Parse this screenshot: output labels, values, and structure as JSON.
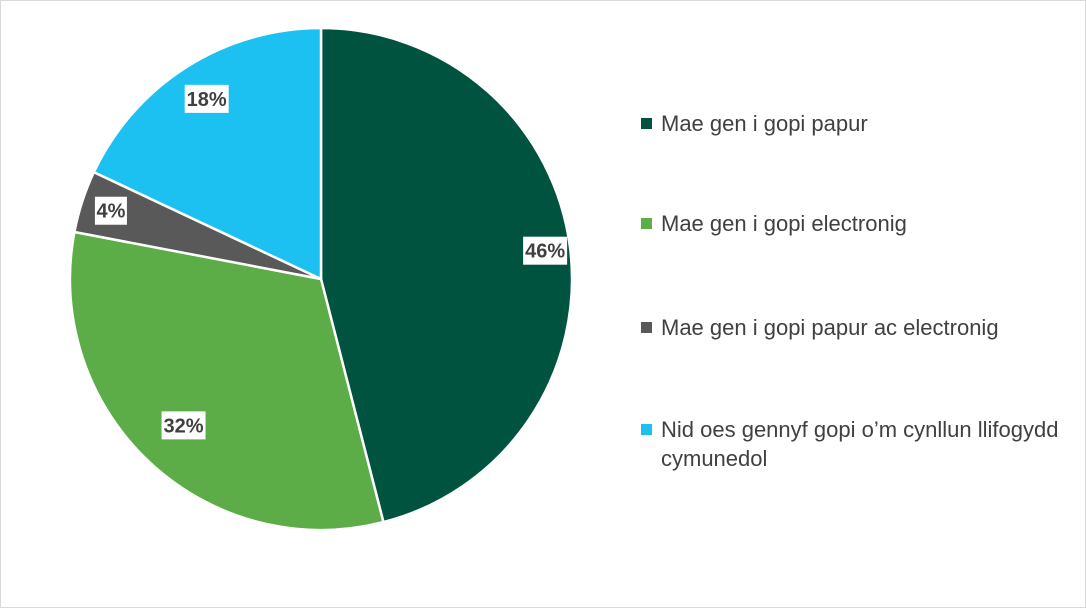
{
  "chart_data": {
    "type": "pie",
    "title": "",
    "slices": [
      {
        "label": "Mae gen i gopi papur",
        "value": 46,
        "display": "46%",
        "color": "#00533f"
      },
      {
        "label": "Mae gen i gopi electronig",
        "value": 32,
        "display": "32%",
        "color": "#5cac47"
      },
      {
        "label": "Mae gen i gopi papur ac electronig",
        "value": 4,
        "display": "4%",
        "color": "#595959"
      },
      {
        "label": "Nid oes gennyf gopi o’m cynllun llifogydd cymunedol",
        "value": 18,
        "display": "18%",
        "color": "#1cc1f1"
      }
    ],
    "legend_position": "right"
  }
}
